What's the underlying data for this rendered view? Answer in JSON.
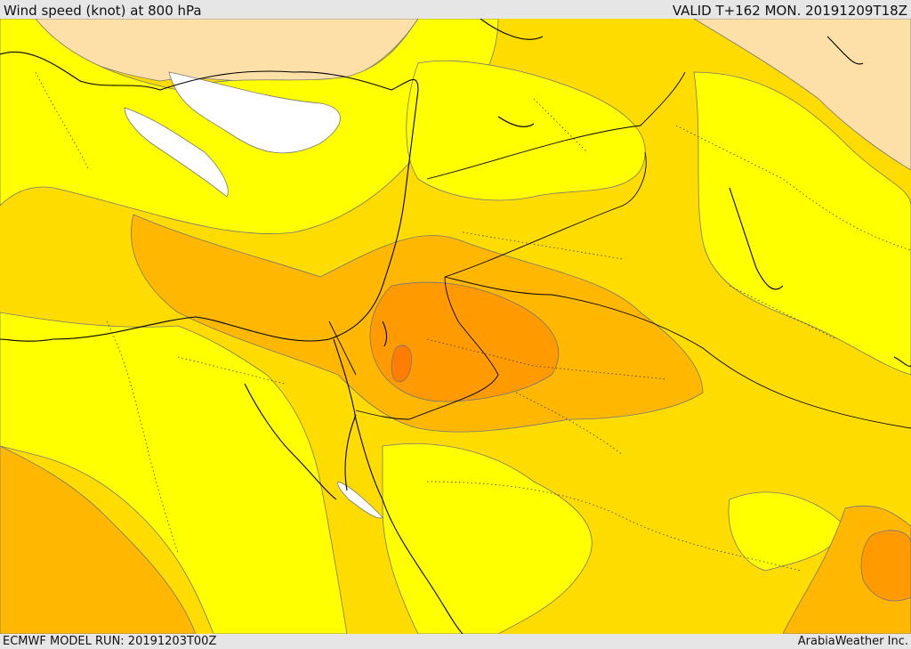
{
  "header": {
    "title": "Wind speed (knot) at 800 hPa",
    "valid": "VALID T+162 MON. 20191209T18Z"
  },
  "footer": {
    "model_run": "ECMWF MODEL RUN: 20191203T00Z",
    "credit": "ArabiaWeather Inc."
  },
  "colors": {
    "calm": "#ffffff",
    "level_1": "#fde0a8",
    "level_2": "#ffff00",
    "level_3": "#ffdc00",
    "level_4": "#ffb700",
    "level_5": "#ff9a00",
    "level_6": "#ff7d00",
    "contour": "#777777",
    "coast": "#000000"
  },
  "icons": {
    "coastlines": "coastline-lines",
    "borders": "dotted-border-lines"
  }
}
